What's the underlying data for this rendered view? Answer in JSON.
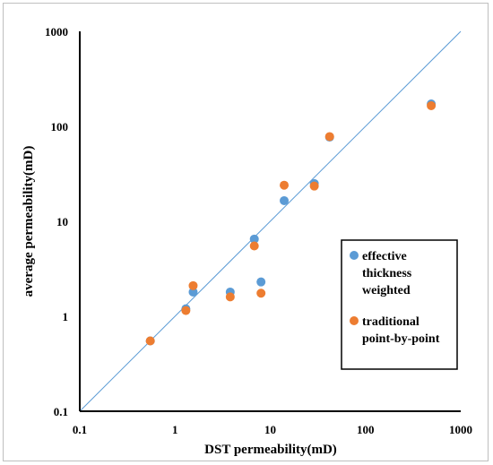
{
  "chart_data": {
    "type": "scatter",
    "title": "",
    "xlabel": "DST permeability(mD)",
    "ylabel": "average permeability(mD)",
    "x_scale": "log",
    "y_scale": "log",
    "xlim": [
      0.1,
      1000
    ],
    "ylim": [
      0.1,
      1000
    ],
    "x_ticks": [
      "0.1",
      "1",
      "10",
      "100",
      "1000"
    ],
    "y_ticks": [
      "0.1",
      "1",
      "10",
      "100",
      "1000"
    ],
    "grid": false,
    "legend_position": "right",
    "reference_line": {
      "from": [
        0.1,
        0.1
      ],
      "to": [
        1000,
        1000
      ],
      "color": "#5b9bd5"
    },
    "series": [
      {
        "name": "effective thickness weighted",
        "color": "#5b9bd5",
        "points": [
          {
            "x": 0.55,
            "y": 0.55
          },
          {
            "x": 1.3,
            "y": 1.2
          },
          {
            "x": 1.55,
            "y": 1.8
          },
          {
            "x": 3.8,
            "y": 1.8
          },
          {
            "x": 6.8,
            "y": 6.5
          },
          {
            "x": 8.0,
            "y": 2.3
          },
          {
            "x": 14.0,
            "y": 16.5
          },
          {
            "x": 29.0,
            "y": 25.0
          },
          {
            "x": 42.0,
            "y": 77.0
          },
          {
            "x": 490.0,
            "y": 172.0
          }
        ]
      },
      {
        "name": "traditional point-by-point",
        "color": "#ed7d31",
        "points": [
          {
            "x": 0.55,
            "y": 0.55
          },
          {
            "x": 1.3,
            "y": 1.15
          },
          {
            "x": 1.55,
            "y": 2.1
          },
          {
            "x": 3.8,
            "y": 1.6
          },
          {
            "x": 6.8,
            "y": 5.5
          },
          {
            "x": 8.0,
            "y": 1.75
          },
          {
            "x": 14.0,
            "y": 24.0
          },
          {
            "x": 29.0,
            "y": 23.5
          },
          {
            "x": 42.0,
            "y": 78.0
          },
          {
            "x": 490.0,
            "y": 165.0
          }
        ]
      }
    ]
  },
  "legend": {
    "items": [
      {
        "lines": [
          "effective",
          "thickness",
          "weighted"
        ],
        "color": "#5b9bd5"
      },
      {
        "lines": [
          "traditional",
          "point-by-point"
        ],
        "color": "#ed7d31"
      }
    ]
  }
}
